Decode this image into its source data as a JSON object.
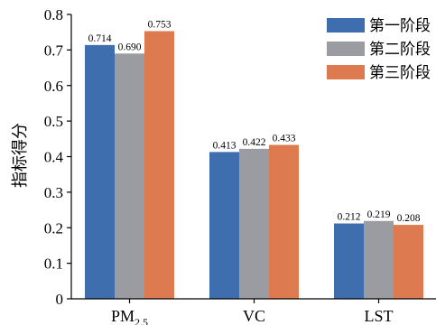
{
  "chart_data": {
    "type": "bar",
    "title": "",
    "xlabel": "",
    "ylabel": "指标得分",
    "ylim": [
      0,
      0.8
    ],
    "yticks": [
      "0",
      "0.1",
      "0.2",
      "0.3",
      "0.4",
      "0.5",
      "0.6",
      "0.7",
      "0.8"
    ],
    "categories": [
      {
        "main": "PM",
        "sub": "2.5"
      },
      {
        "main": "VC",
        "sub": ""
      },
      {
        "main": "LST",
        "sub": ""
      }
    ],
    "series": [
      {
        "name": "第一阶段",
        "color": "#3f6eae",
        "values": [
          0.714,
          0.413,
          0.212
        ],
        "labels": [
          "0.714",
          "0.413",
          "0.212"
        ]
      },
      {
        "name": "第二阶段",
        "color": "#9a9ca1",
        "values": [
          0.69,
          0.422,
          0.219
        ],
        "labels": [
          "0.690",
          "0.422",
          "0.219"
        ]
      },
      {
        "name": "第三阶段",
        "color": "#dd7a4f",
        "values": [
          0.753,
          0.433,
          0.208
        ],
        "labels": [
          "0.753",
          "0.433",
          "0.208"
        ]
      }
    ],
    "legend_position": "top-right",
    "grid": false
  }
}
